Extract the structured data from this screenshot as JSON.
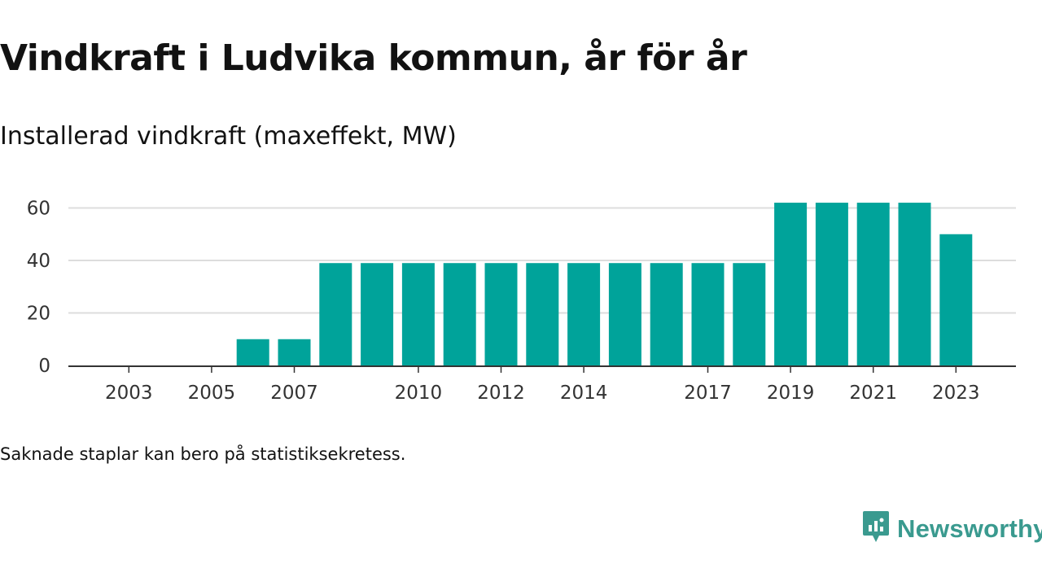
{
  "header": {
    "title": "Vindkraft i Ludvika kommun, år för år",
    "subtitle": "Installerad vindkraft (maxeffekt, MW)"
  },
  "footnote": "Saknade staplar kan bero på statistiksekretess.",
  "brand": {
    "name": "Newsworthy",
    "icon": "newsworthy-logo-icon"
  },
  "colors": {
    "bar": "#00a39a",
    "grid": "#dddddd",
    "axis": "#333333",
    "brand": "#3a9a8f"
  },
  "chart_data": {
    "type": "bar",
    "title": "Vindkraft i Ludvika kommun, år för år",
    "subtitle": "Installerad vindkraft (maxeffekt, MW)",
    "xlabel": "",
    "ylabel": "",
    "x_ticks": [
      "2003",
      "2005",
      "2007",
      "2010",
      "2012",
      "2014",
      "2017",
      "2019",
      "2021",
      "2023"
    ],
    "y_ticks": [
      0,
      20,
      40,
      60
    ],
    "ylim": [
      0,
      62
    ],
    "grid": true,
    "legend": "none",
    "categories": [
      "2002",
      "2003",
      "2004",
      "2005",
      "2006",
      "2007",
      "2008",
      "2009",
      "2010",
      "2011",
      "2012",
      "2013",
      "2014",
      "2015",
      "2016",
      "2017",
      "2018",
      "2019",
      "2020",
      "2021",
      "2022",
      "2023"
    ],
    "values": [
      0,
      0,
      0,
      0,
      10,
      10,
      39,
      39,
      39,
      39,
      39,
      39,
      39,
      39,
      39,
      39,
      39,
      62,
      62,
      62,
      62,
      50
    ]
  }
}
